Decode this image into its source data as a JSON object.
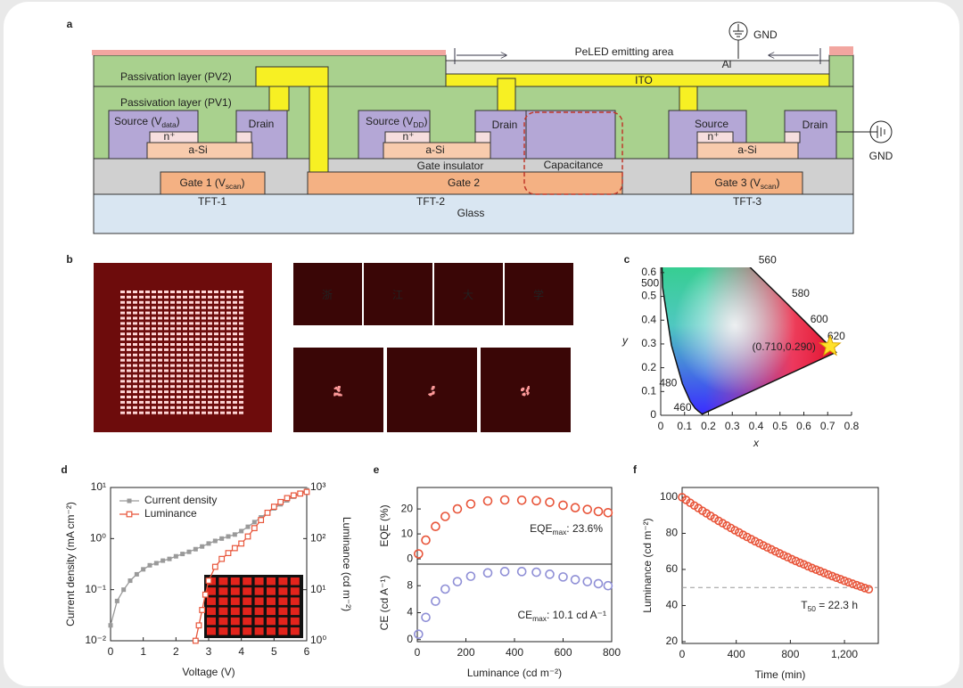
{
  "panel_labels": [
    "a",
    "b",
    "c",
    "d",
    "e",
    "f"
  ],
  "diagram": {
    "emitting_area": "PeLED emitting area",
    "gnd_top": "GND",
    "al": "Al",
    "gnd_right": "GND",
    "pv2": "Passivation layer (PV2)",
    "pv1": "Passivation layer (PV1)",
    "ito": "ITO",
    "gate_insulator": "Gate insulator",
    "capacitance": "Capacitance",
    "glass": "Glass",
    "tfts": [
      {
        "name": "TFT-1",
        "source": {
          "text": "Source (V",
          "sub": "data",
          "after": ")"
        },
        "drain": "Drain",
        "n_plus": "n⁺",
        "channel": "a-Si",
        "gate": {
          "text": "Gate 1 (V",
          "sub": "scan",
          "after": ")"
        }
      },
      {
        "name": "TFT-2",
        "source": {
          "text": "Source (V",
          "sub": "DD",
          "after": ")"
        },
        "drain": "Drain",
        "n_plus": "n⁺",
        "channel": "a-Si",
        "gate": "Gate 2"
      },
      {
        "name": "TFT-3",
        "source": "Source",
        "drain": "Drain",
        "n_plus": "n⁺",
        "channel": "a-Si",
        "gate": {
          "text": "Gate 3 (V",
          "sub": "scan",
          "after": ")"
        }
      }
    ]
  },
  "images": {
    "characters": [
      "浙",
      "江",
      "大",
      "学"
    ],
    "letters": [
      "Z",
      "J",
      "U"
    ]
  },
  "chart_data": [
    {
      "type": "cie",
      "xlabel": "x",
      "ylabel": "y",
      "xlim": [
        0,
        0.8
      ],
      "ylim": [
        0,
        0.622
      ],
      "xticks": [
        0,
        0.1,
        0.2,
        0.3,
        0.4,
        0.5,
        0.6,
        0.7,
        0.8
      ],
      "yticks": [
        0,
        0.1,
        0.2,
        0.3,
        0.4,
        0.5,
        0.6
      ],
      "wavelength_labels": [
        "460",
        "480",
        "500",
        "560",
        "580",
        "600",
        "620"
      ],
      "point": {
        "x": 0.71,
        "y": 0.29,
        "label": "(0.710,0.290)",
        "color": "#ffe12a"
      }
    },
    {
      "type": "line",
      "xlabel": "Voltage (V)",
      "ylabel": "Current density (mA cm⁻²)",
      "y2label": "Luminance (cd m⁻²)",
      "xlim": [
        0,
        6
      ],
      "xticks": [
        0,
        1,
        2,
        3,
        4,
        5,
        6
      ],
      "ylim": [
        0.01,
        10
      ],
      "ylog": true,
      "yticks": [
        {
          "value": 0.01,
          "label": "10⁻²"
        },
        {
          "value": 0.1,
          "label": "10⁻¹"
        },
        {
          "value": 1,
          "label": "10⁰"
        },
        {
          "value": 10,
          "label": "10¹"
        }
      ],
      "y2lim": [
        1,
        1000
      ],
      "y2log": true,
      "y2ticks": [
        {
          "value": 1,
          "label": "10⁰"
        },
        {
          "value": 10,
          "label": "10¹"
        },
        {
          "value": 100,
          "label": "10²"
        },
        {
          "value": 1000,
          "label": "10³"
        }
      ],
      "legend": "upper left",
      "series": [
        {
          "name": "Current density",
          "color": "#9a9a9a",
          "marker": "filled-square",
          "x": [
            0,
            0.2,
            0.4,
            0.6,
            0.8,
            1.0,
            1.2,
            1.4,
            1.6,
            1.8,
            2.0,
            2.2,
            2.4,
            2.6,
            2.8,
            3.0,
            3.2,
            3.4,
            3.6,
            3.8,
            4.0,
            4.2,
            4.4,
            4.6,
            4.8,
            5.0,
            5.2,
            5.4,
            5.6,
            5.8,
            6.0
          ],
          "values": [
            0.02,
            0.06,
            0.1,
            0.15,
            0.2,
            0.25,
            0.3,
            0.33,
            0.37,
            0.4,
            0.45,
            0.5,
            0.55,
            0.62,
            0.7,
            0.8,
            0.9,
            1.0,
            1.1,
            1.2,
            1.4,
            1.7,
            2.1,
            2.6,
            3.2,
            3.9,
            4.7,
            5.6,
            6.6,
            7.8,
            9
          ]
        },
        {
          "name": "Luminance",
          "color": "#e8553a",
          "marker": "open-square",
          "axis": "y2",
          "x": [
            2.6,
            2.7,
            2.8,
            2.9,
            3.0,
            3.2,
            3.4,
            3.6,
            3.8,
            4.0,
            4.2,
            4.4,
            4.6,
            4.8,
            5.0,
            5.2,
            5.4,
            5.6,
            5.8,
            6.0
          ],
          "values": [
            1,
            2,
            4,
            8,
            15,
            28,
            40,
            52,
            65,
            80,
            110,
            160,
            230,
            320,
            420,
            520,
            620,
            700,
            760,
            820
          ]
        }
      ]
    },
    {
      "type": "scatter",
      "ylabel": "EQE (%)",
      "xlim": [
        0,
        800
      ],
      "ylim": [
        -2.1,
        28.6
      ],
      "yticks": [
        0,
        10,
        20
      ],
      "color": "#e8553a",
      "x": [
        5,
        35,
        75,
        115,
        165,
        220,
        290,
        360,
        430,
        490,
        545,
        600,
        650,
        700,
        745,
        785
      ],
      "values": [
        2,
        7.5,
        13,
        17,
        20,
        22,
        23.2,
        23.6,
        23.5,
        23.3,
        22.7,
        21.5,
        20.5,
        19.8,
        19,
        18.5
      ],
      "annotation": {
        "text": "EQE",
        "sub": "max",
        "after": ": 23.6%"
      }
    },
    {
      "type": "scatter",
      "xlabel": "Luminance (cd m⁻²)",
      "ylabel": "CE (cd A⁻¹)",
      "xlim": [
        0,
        800
      ],
      "xticks": [
        0,
        200,
        400,
        600,
        800
      ],
      "ylim": [
        -0.3,
        11.2
      ],
      "yticks": [
        0,
        4,
        8
      ],
      "color": "#8f8fd6",
      "x": [
        5,
        35,
        75,
        115,
        165,
        220,
        290,
        360,
        430,
        490,
        545,
        600,
        650,
        700,
        745,
        785
      ],
      "values": [
        0.8,
        3.3,
        5.7,
        7.5,
        8.6,
        9.4,
        9.9,
        10.1,
        10.1,
        10,
        9.7,
        9.3,
        8.9,
        8.6,
        8.3,
        8.0
      ],
      "annotation": {
        "text": "CE",
        "sub": "max",
        "after": ": 10.1 cd A⁻¹"
      }
    },
    {
      "type": "scatter",
      "xlabel": "Time (min)",
      "ylabel": "Luminance (cd m⁻²)",
      "xlim": [
        0,
        1450
      ],
      "xticks": [
        0,
        400,
        800,
        {
          "value": 1200,
          "label": "1,200"
        }
      ],
      "ylim": [
        19,
        105.4
      ],
      "yticks": [
        20,
        40,
        60,
        80,
        100
      ],
      "color": "#e8553a",
      "reference_line": 50,
      "x": [
        0,
        30,
        60,
        90,
        120,
        150,
        180,
        210,
        240,
        270,
        300,
        330,
        360,
        390,
        420,
        450,
        480,
        510,
        540,
        570,
        600,
        630,
        660,
        690,
        720,
        750,
        780,
        810,
        840,
        870,
        900,
        930,
        960,
        990,
        1020,
        1050,
        1080,
        1110,
        1140,
        1170,
        1200,
        1230,
        1260,
        1290,
        1320,
        1350,
        1380
      ],
      "values": [
        100,
        98.5,
        96.9,
        95.4,
        94.0,
        92.5,
        91.1,
        89.7,
        88.3,
        86.9,
        85.6,
        84.3,
        83.0,
        81.7,
        80.5,
        79.2,
        78.0,
        76.8,
        75.6,
        74.5,
        73.3,
        72.2,
        71.1,
        70.0,
        68.9,
        67.8,
        66.8,
        65.7,
        64.7,
        63.7,
        62.8,
        61.8,
        60.8,
        59.9,
        59.0,
        58.1,
        57.2,
        56.3,
        55.4,
        54.6,
        53.7,
        52.9,
        52.1,
        51.3,
        50.5,
        49.7,
        49.0
      ],
      "annotation": {
        "text": "T",
        "sub": "50",
        "after": " = 22.3 h"
      }
    }
  ]
}
